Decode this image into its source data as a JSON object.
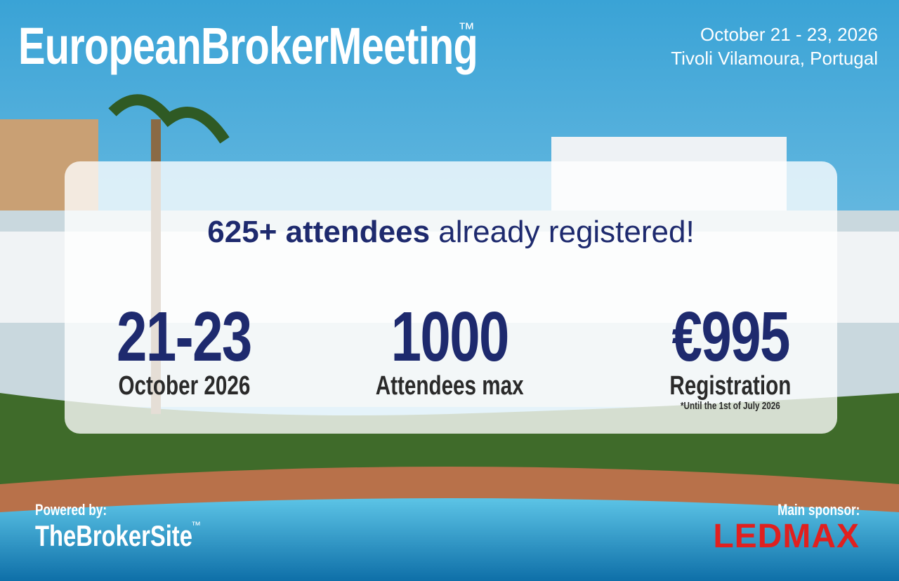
{
  "header": {
    "title": "EuropeanBrokerMeeting",
    "trademark": "™",
    "date": "October 21 - 23, 2026",
    "location": "Tivoli Vilamoura, Portugal"
  },
  "banner": {
    "highlight": "625+ attendees",
    "rest": "already registered!"
  },
  "stats": [
    {
      "value": "21-23",
      "label": "October 2026"
    },
    {
      "value": "1000",
      "label": "Attendees max"
    },
    {
      "value": "€995",
      "label": "Registration",
      "note": "*Until the 1st of July 2026"
    }
  ],
  "footer": {
    "powered_label": "Powered by:",
    "powered_name": "TheBrokerSite",
    "powered_tm": "™",
    "sponsor_label": "Main sponsor:",
    "sponsor_name": "LEDMAX"
  }
}
